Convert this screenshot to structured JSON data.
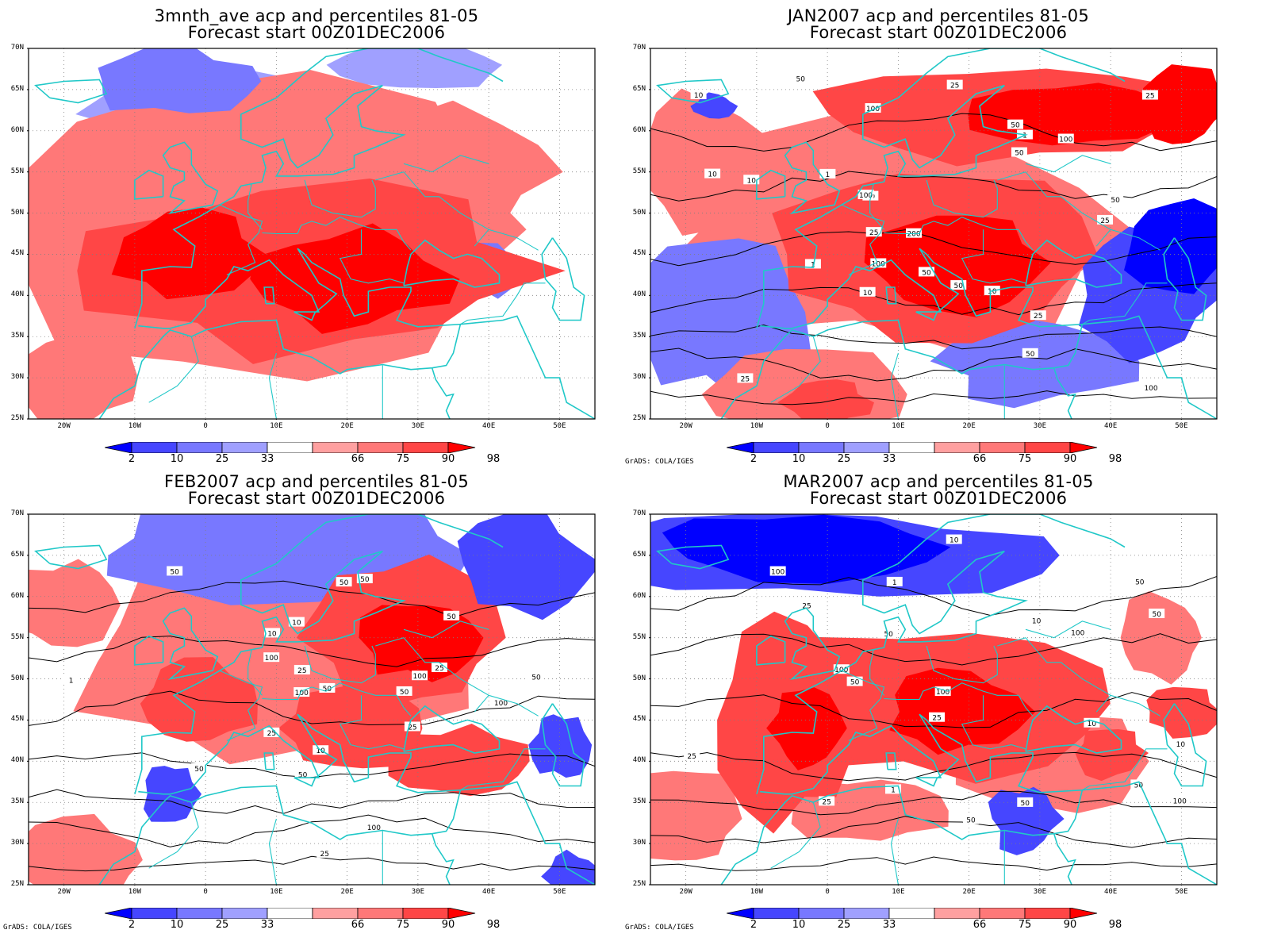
{
  "panels": [
    {
      "id": "p1",
      "title_line1": "3mnth_ave acp and percentiles 81-05",
      "title_line2": "Forecast start 00Z01DEC2006",
      "credit": ""
    },
    {
      "id": "p2",
      "title_line1": "JAN2007 acp and percentiles 81-05",
      "title_line2": "Forecast start 00Z01DEC2006",
      "credit": "GrADS: COLA/IGES"
    },
    {
      "id": "p3",
      "title_line1": "FEB2007 acp and percentiles 81-05",
      "title_line2": "Forecast start 00Z01DEC2006",
      "credit": "GrADS: COLA/IGES"
    },
    {
      "id": "p4",
      "title_line1": "MAR2007 acp and percentiles 81-05",
      "title_line2": "Forecast start 00Z01DEC2006",
      "credit": "GrADS: COLA/IGES"
    }
  ],
  "lat_labels": [
    "70N",
    "65N",
    "60N",
    "55N",
    "50N",
    "45N",
    "40N",
    "35N",
    "30N",
    "25N"
  ],
  "lon_labels": [
    "20W",
    "10W",
    "0",
    "10E",
    "20E",
    "30E",
    "40E",
    "50E"
  ],
  "colorbar": {
    "labels": [
      "2",
      "10",
      "25",
      "33",
      "66",
      "75",
      "90",
      "98"
    ],
    "colors": [
      "#0000ff",
      "#4646ff",
      "#7878ff",
      "#a0a0ff",
      "#ffffff",
      "#ffa0a0",
      "#ff7878",
      "#ff4646",
      "#ff0000"
    ]
  },
  "coast_color": "#20c8c8",
  "panel_contour_labels": [
    [],
    [
      "100",
      "200",
      "100",
      "50",
      "50",
      "50",
      "100",
      "100",
      "100",
      "50",
      "25",
      "50",
      "25",
      "10",
      "50",
      "10",
      "25",
      "50",
      "25",
      "10",
      "1",
      "25",
      "50",
      "25",
      "10",
      "1",
      "10",
      "1"
    ],
    [
      "100",
      "100",
      "50",
      "50",
      "50",
      "100",
      "50",
      "50",
      "100",
      "100",
      "50",
      "50",
      "25",
      "25",
      "50",
      "50",
      "25",
      "10",
      "10",
      "10",
      "25",
      "25",
      "1"
    ],
    [
      "100",
      "100",
      "50",
      "100",
      "100",
      "50",
      "100",
      "50",
      "50",
      "50",
      "25",
      "25",
      "50",
      "10",
      "10",
      "1",
      "25",
      "50",
      "10",
      "10",
      "25",
      "1"
    ]
  ]
}
